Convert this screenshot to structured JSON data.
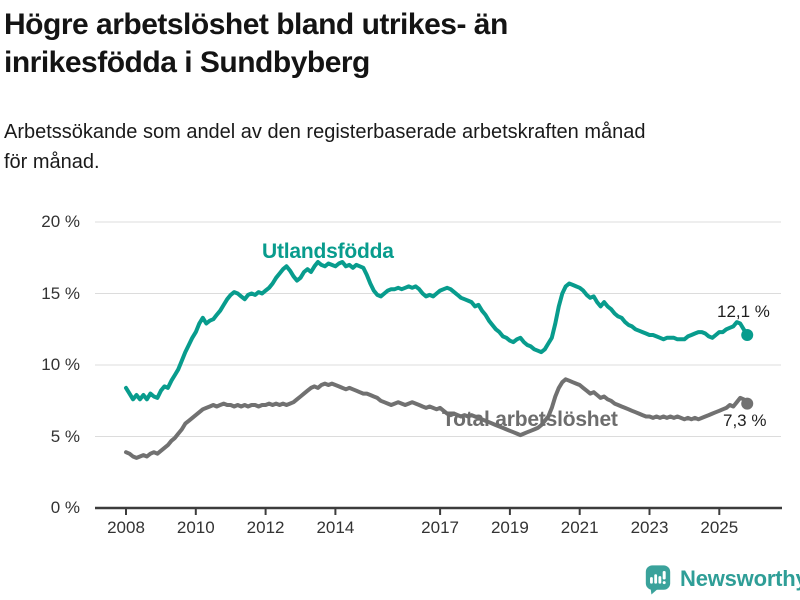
{
  "header": {
    "title_lines": [
      "Högre arbetslöshet bland utrikes- än",
      "inrikesfödda i Sundbyberg"
    ],
    "subtitle_lines": [
      "Arbetssökande som andel av den registerbaserade arbetskraften månad",
      "för månad."
    ]
  },
  "footer": {
    "brand": "Newsworthy",
    "brand_color": "#2f9e97",
    "icon": "newsworthy-speech-bubble-bar-chart-icon",
    "icon_color": "#3aa29b"
  },
  "chart_data": {
    "type": "line",
    "title": "Högre arbetslöshet bland utrikes- än inrikesfödda i Sundbyberg",
    "subtitle": "Arbetssökande som andel av den registerbaserade arbetskraften månad för månad.",
    "xlabel": "",
    "ylabel": "",
    "grid": true,
    "x_range": [
      2008.0,
      2025.8
    ],
    "y_axis": {
      "range": [
        0,
        20
      ],
      "ticks": [
        0,
        5,
        10,
        15,
        20
      ],
      "labels": [
        "0 %",
        "5 %",
        "10 %",
        "15 %",
        "20 %"
      ]
    },
    "x_axis": {
      "ticks": [
        2008,
        2010,
        2012,
        2014,
        2017,
        2019,
        2021,
        2023,
        2025
      ],
      "labels": [
        "2008",
        "2010",
        "2012",
        "2014",
        "2017",
        "2019",
        "2021",
        "2023",
        "2025"
      ]
    },
    "style": {
      "grid_color": "#dcdcdc",
      "axis_color": "#3c3c3c",
      "tick_text_color": "#333333"
    },
    "series": [
      {
        "name": "Utlandsfödda",
        "data_name": "utlandsfodda",
        "color": "#089c8d",
        "label_color": "#089c8d",
        "end_value_label": "12,1 %",
        "end_value": 12.1,
        "legend_position": "inline-above-line",
        "start": 2008.0,
        "step": 0.1,
        "values": [
          8.4,
          8.0,
          7.6,
          7.9,
          7.6,
          7.9,
          7.6,
          8.0,
          7.8,
          7.7,
          8.2,
          8.5,
          8.4,
          8.9,
          9.3,
          9.7,
          10.3,
          10.9,
          11.4,
          11.9,
          12.3,
          12.9,
          13.3,
          12.9,
          13.1,
          13.2,
          13.5,
          13.8,
          14.2,
          14.6,
          14.9,
          15.1,
          15.0,
          14.8,
          14.6,
          14.9,
          15.0,
          14.9,
          15.1,
          15.0,
          15.2,
          15.4,
          15.7,
          16.1,
          16.4,
          16.7,
          16.9,
          16.6,
          16.2,
          15.9,
          16.1,
          16.5,
          16.7,
          16.5,
          16.9,
          17.2,
          17.0,
          16.9,
          17.1,
          17.0,
          16.9,
          17.1,
          17.2,
          16.9,
          17.0,
          16.8,
          17.0,
          16.9,
          16.8,
          16.3,
          15.7,
          15.2,
          14.9,
          14.8,
          15.0,
          15.2,
          15.3,
          15.3,
          15.4,
          15.3,
          15.4,
          15.5,
          15.4,
          15.5,
          15.3,
          15.0,
          14.8,
          14.9,
          14.8,
          15.0,
          15.2,
          15.3,
          15.4,
          15.3,
          15.1,
          14.9,
          14.7,
          14.6,
          14.5,
          14.4,
          14.1,
          14.2,
          13.8,
          13.5,
          13.1,
          12.8,
          12.5,
          12.3,
          12.0,
          11.9,
          11.7,
          11.6,
          11.8,
          11.9,
          11.6,
          11.4,
          11.3,
          11.1,
          11.0,
          10.9,
          11.1,
          11.5,
          11.9,
          12.9,
          14.1,
          15.0,
          15.5,
          15.7,
          15.6,
          15.5,
          15.4,
          15.2,
          14.9,
          14.7,
          14.8,
          14.4,
          14.1,
          14.4,
          14.1,
          13.9,
          13.6,
          13.4,
          13.3,
          13.0,
          12.8,
          12.7,
          12.5,
          12.4,
          12.3,
          12.2,
          12.1,
          12.1,
          12.0,
          11.9,
          11.8,
          11.9,
          11.9,
          11.9,
          11.8,
          11.8,
          11.8,
          12.0,
          12.1,
          12.2,
          12.3,
          12.3,
          12.2,
          12.0,
          11.9,
          12.1,
          12.3,
          12.3,
          12.5,
          12.6,
          12.7,
          13.0,
          12.9,
          12.5,
          12.1
        ]
      },
      {
        "name": "Total arbetslöshet",
        "data_name": "total-arbetsloshet",
        "color": "#717171",
        "label_color": "#6d6d6d",
        "end_value_label": "7,3 %",
        "end_value": 7.3,
        "legend_position": "inline-below-line",
        "start": 2008.0,
        "step": 0.1,
        "values": [
          3.9,
          3.8,
          3.6,
          3.5,
          3.6,
          3.7,
          3.6,
          3.8,
          3.9,
          3.8,
          4.0,
          4.2,
          4.4,
          4.7,
          4.9,
          5.2,
          5.5,
          5.9,
          6.1,
          6.3,
          6.5,
          6.7,
          6.9,
          7.0,
          7.1,
          7.2,
          7.1,
          7.2,
          7.3,
          7.2,
          7.2,
          7.1,
          7.2,
          7.1,
          7.2,
          7.1,
          7.2,
          7.2,
          7.1,
          7.2,
          7.2,
          7.3,
          7.2,
          7.3,
          7.2,
          7.3,
          7.2,
          7.3,
          7.4,
          7.6,
          7.8,
          8.0,
          8.2,
          8.4,
          8.5,
          8.4,
          8.6,
          8.7,
          8.6,
          8.7,
          8.6,
          8.5,
          8.4,
          8.3,
          8.4,
          8.3,
          8.2,
          8.1,
          8.0,
          8.0,
          7.9,
          7.8,
          7.7,
          7.5,
          7.4,
          7.3,
          7.2,
          7.3,
          7.4,
          7.3,
          7.2,
          7.3,
          7.4,
          7.3,
          7.2,
          7.1,
          7.0,
          7.1,
          7.0,
          6.9,
          7.0,
          6.8,
          6.6,
          6.5,
          6.6,
          6.5,
          6.4,
          6.5,
          6.4,
          6.5,
          6.4,
          6.3,
          6.2,
          6.1,
          6.0,
          5.9,
          5.8,
          5.7,
          5.6,
          5.5,
          5.4,
          5.3,
          5.2,
          5.1,
          5.2,
          5.3,
          5.4,
          5.5,
          5.6,
          5.8,
          6.1,
          6.4,
          7.0,
          7.8,
          8.4,
          8.8,
          9.0,
          8.9,
          8.8,
          8.7,
          8.6,
          8.4,
          8.2,
          8.0,
          8.1,
          7.9,
          7.7,
          7.8,
          7.6,
          7.5,
          7.3,
          7.2,
          7.1,
          7.0,
          6.9,
          6.8,
          6.7,
          6.6,
          6.5,
          6.4,
          6.4,
          6.3,
          6.4,
          6.3,
          6.4,
          6.3,
          6.4,
          6.3,
          6.4,
          6.3,
          6.2,
          6.3,
          6.2,
          6.3,
          6.2,
          6.3,
          6.4,
          6.5,
          6.6,
          6.7,
          6.8,
          6.9,
          7.0,
          7.2,
          7.1,
          7.4,
          7.7,
          7.6,
          7.3
        ]
      }
    ]
  }
}
